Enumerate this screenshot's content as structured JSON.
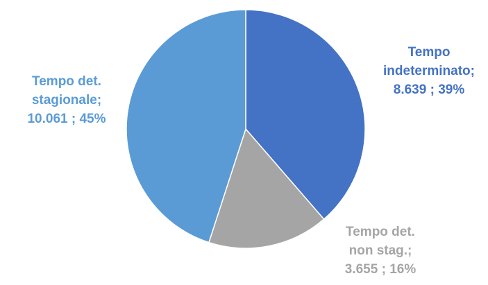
{
  "chart_data": {
    "type": "pie",
    "title": "",
    "slices": [
      {
        "name": "Tempo indeterminato",
        "value": 8639,
        "percent": 39,
        "label_lines": [
          "Tempo",
          "indeterminato;",
          "8.639 ; 39%"
        ],
        "color": "#4472c4"
      },
      {
        "name": "Tempo det. non stag.",
        "value": 3655,
        "percent": 16,
        "label_lines": [
          "Tempo det.",
          "non stag.;",
          "3.655 ; 16%"
        ],
        "color": "#a5a5a5"
      },
      {
        "name": "Tempo det. stagionale",
        "value": 10061,
        "percent": 45,
        "label_lines": [
          "Tempo  det.",
          "stagionale;",
          "10.061 ; 45%"
        ],
        "color": "#5b9bd5"
      }
    ],
    "start_angle_deg": 0,
    "direction": "clockwise",
    "legend": "none"
  }
}
